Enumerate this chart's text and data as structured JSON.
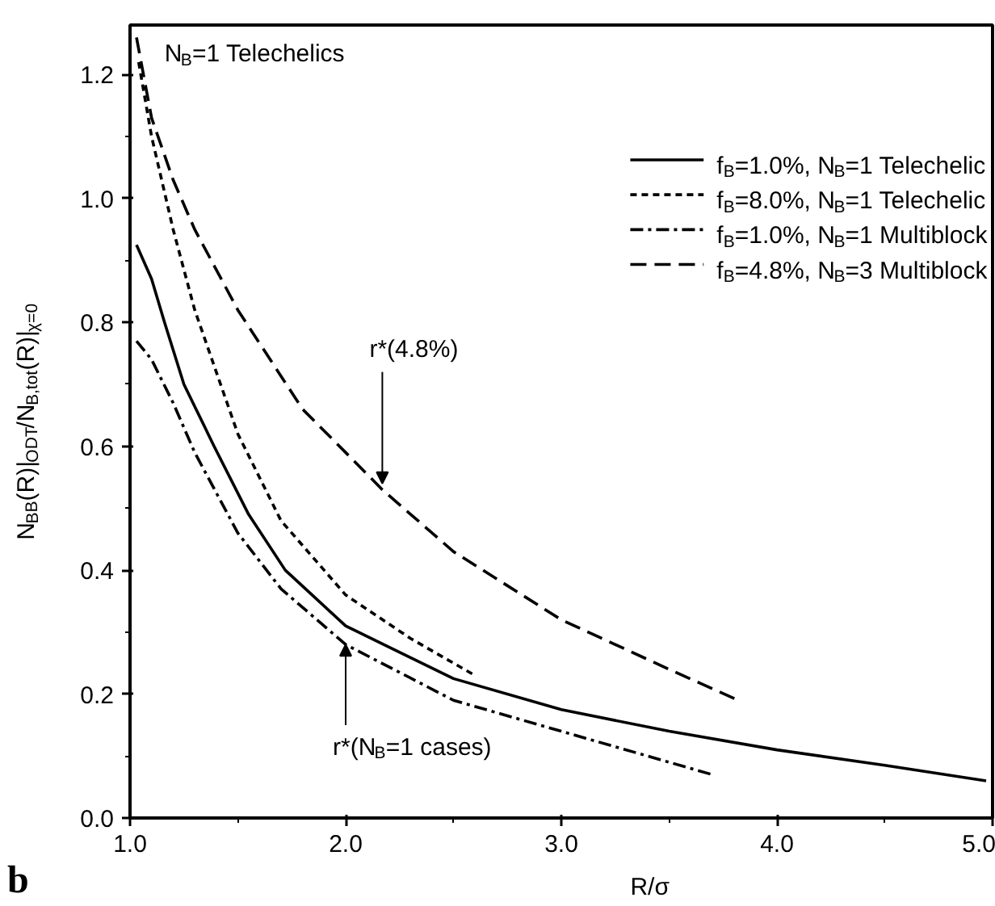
{
  "chart_data": {
    "type": "line",
    "xlabel": "R/σ",
    "ylabel": "N$_{BB}$(R)|$_{ODT}$/N$_{B,tot}$(R)|$_{χ=0}$",
    "xlim": [
      1.0,
      5.0
    ],
    "ylim": [
      0.0,
      1.28
    ],
    "xticks": [
      {
        "value": 1,
        "label": "1.0"
      },
      {
        "value": 2,
        "label": "2.0"
      },
      {
        "value": 3,
        "label": "3.0"
      },
      {
        "value": 4,
        "label": "4.0"
      },
      {
        "value": 5,
        "label": "5.0"
      }
    ],
    "yticks": [
      {
        "value": 0,
        "label": "0.0"
      },
      0.2,
      0.4,
      0.6,
      0.8,
      {
        "value": 1,
        "label": "1.0"
      },
      1.2
    ],
    "grid": false,
    "legend": "top right",
    "series": [
      {
        "name": "f$_{B}$=1.0%, N$_{B}$=1 Telechelic",
        "color": "#000000",
        "line_style": "solid",
        "x": [
          1.03,
          1.1,
          1.16,
          1.25,
          1.39,
          1.55,
          1.72,
          2.0,
          2.5,
          3.0,
          3.5,
          4.0,
          4.5,
          4.97
        ],
        "values": [
          0.925,
          0.87,
          0.8,
          0.7,
          0.6,
          0.49,
          0.4,
          0.31,
          0.225,
          0.175,
          0.14,
          0.11,
          0.085,
          0.06
        ]
      },
      {
        "name": "f$_{B}$=8.0%, N$_{B}$=1 Telechelic",
        "color": "#000000",
        "line_style": "dashed",
        "x": [
          1.04,
          1.1,
          1.2,
          1.3,
          1.5,
          1.7,
          2.0,
          2.3,
          2.6
        ],
        "values": [
          1.22,
          1.1,
          0.95,
          0.82,
          0.62,
          0.48,
          0.36,
          0.29,
          0.23
        ]
      },
      {
        "name": "f$_{B}$=1.0%, N$_{B}$=1 Multiblock",
        "color": "#000000",
        "line_style": "dashdot",
        "x": [
          1.03,
          1.1,
          1.2,
          1.3,
          1.5,
          1.7,
          2.0,
          2.5,
          3.0,
          3.5,
          3.7
        ],
        "values": [
          0.77,
          0.74,
          0.67,
          0.59,
          0.46,
          0.37,
          0.28,
          0.19,
          0.14,
          0.09,
          0.07
        ]
      },
      {
        "name": "f$_{B}$=4.8%, N$_{B}$=3 Multiblock",
        "color": "#000000",
        "line_style": "longdash",
        "x": [
          1.03,
          1.1,
          1.2,
          1.3,
          1.5,
          1.8,
          2.0,
          2.17,
          2.5,
          3.0,
          3.5,
          3.82
        ],
        "values": [
          1.26,
          1.13,
          1.03,
          0.95,
          0.82,
          0.66,
          0.59,
          0.53,
          0.43,
          0.32,
          0.24,
          0.19
        ]
      }
    ],
    "annotations": [
      "N$_{B}$=1 Telechelics",
      {
        "text": "r*(4.8%)",
        "x": 2.17,
        "y": 0.54
      },
      {
        "text": "r*(N$_{B}$=1 cases)",
        "x": 2.0,
        "y": 0.28
      },
      "b"
    ]
  }
}
